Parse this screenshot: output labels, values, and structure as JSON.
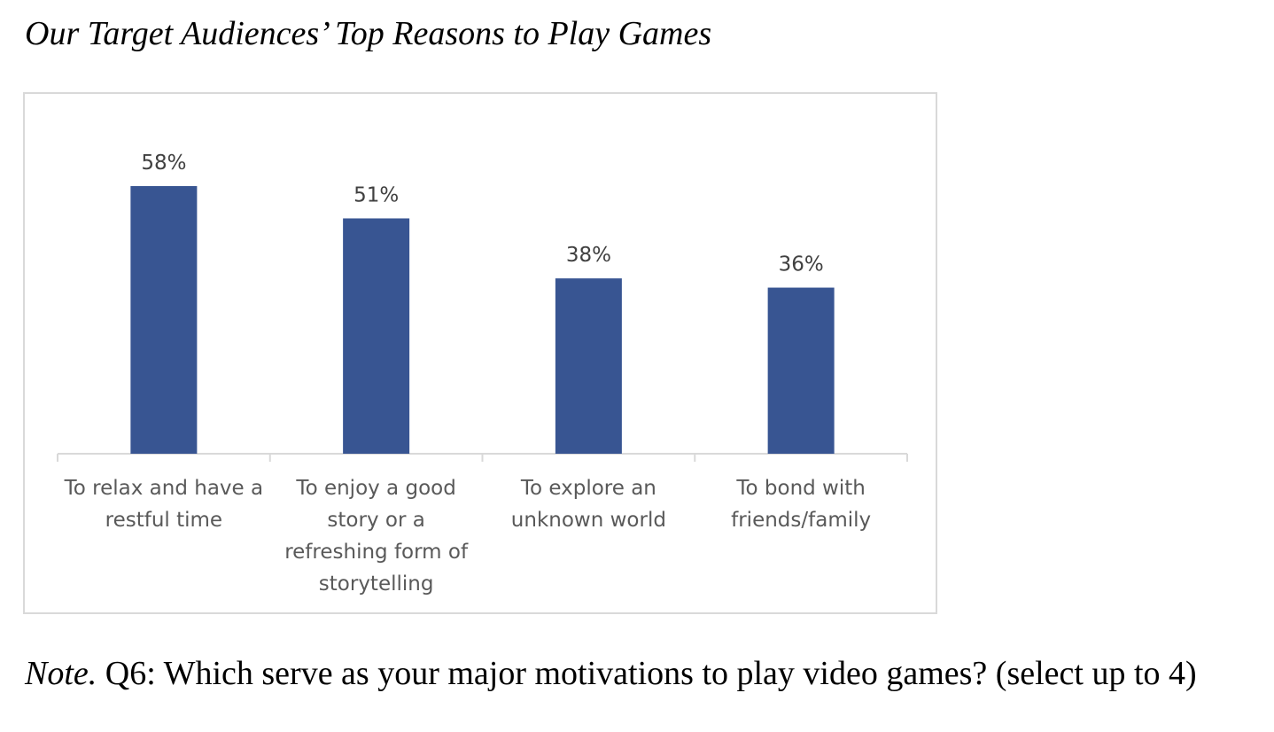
{
  "figure": {
    "title": "Our Target Audiences’ Top Reasons to Play Games",
    "note_label": "Note.",
    "note_text": " Q6: Which serve as your major motivations to play video games? (select up to 4)"
  },
  "chart_data": {
    "type": "bar",
    "title": "",
    "xlabel": "",
    "ylabel": "",
    "categories": [
      "To relax and have a restful time",
      "To enjoy a good story or a refreshing form of storytelling",
      "To explore an unknown world",
      "To bond with friends/family"
    ],
    "category_lines": [
      [
        "To relax and have a",
        "restful time"
      ],
      [
        "To enjoy a good",
        "story or a",
        "refreshing form of",
        "storytelling"
      ],
      [
        "To explore an",
        "unknown world"
      ],
      [
        "To bond with",
        "friends/family"
      ]
    ],
    "values": [
      58,
      51,
      38,
      36
    ],
    "data_labels": [
      "58%",
      "51%",
      "38%",
      "36%"
    ],
    "unit": "%",
    "ylim": [
      0,
      60
    ],
    "grid": false,
    "legend": "none",
    "bar_color": "#385592",
    "axis_color": "#d9d9d9"
  }
}
